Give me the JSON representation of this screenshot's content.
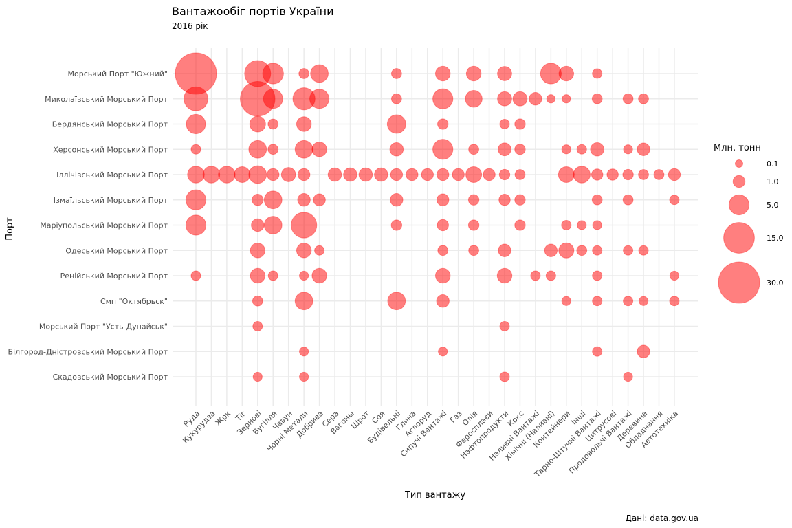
{
  "chart_data": {
    "type": "scatter",
    "title": "Вантажообіг портів України",
    "subtitle": "2016 рік",
    "xlabel": "Тип вантажу",
    "ylabel": "Порт",
    "caption": "Дані: data.gov.ua",
    "categories_x": [
      "Руда",
      "Кукурудза",
      "Жрк",
      "Тіг",
      "Зернові",
      "Вугілля",
      "Чавун",
      "Чорні Метали",
      "Добрива",
      "Сера",
      "Вагоны",
      "Шрот",
      "Соя",
      "Будівельні",
      "Глина",
      "Аглоруд",
      "Сипучі Вантажі",
      "Газ",
      "Олія",
      "Феросплави",
      "Нафтопродукти",
      "Кокс",
      "Наливні Вантажі",
      "Хімічні (Наливні)",
      "Контейнери",
      "Інші",
      "Тарно-Штучні Вантажі",
      "Цитрусові",
      "Продовольчі Вантажі",
      "Деревина",
      "Обладнання",
      "Автотехніка"
    ],
    "categories_y": [
      "Морський Порт \"Южний\"",
      "Миколаївський Морський Порт",
      "Бердянський Морський Порт",
      "Херсонський Морський Порт",
      "Іллічівський Морський Порт",
      "Ізмаїльський Морський Порт",
      "Маріупольський Морський Порт",
      "Одеський Морський Порт",
      "Ренійський Морський Порт",
      "Смп \"Октябрьск\"",
      "Морський Порт \"Усть-Дунайськ\"",
      "Білгород-Дністровський Морський Порт",
      "Скадовський Морський Порт"
    ],
    "grid": true,
    "legend": {
      "title": "Млн. тонн",
      "position": "right",
      "values": [
        0.1,
        1.0,
        5.0,
        15.0,
        30.0
      ],
      "labels": [
        "0.1",
        "1.0",
        "5.0",
        "15.0",
        "30.0"
      ]
    },
    "color": "#ff0000",
    "opacity": 0.5,
    "points": [
      {
        "x": "Руда",
        "y": "Морський Порт \"Южний\"",
        "value": 30.0
      },
      {
        "x": "Зернові",
        "y": "Морський Порт \"Южний\"",
        "value": 10.0
      },
      {
        "x": "Вугілля",
        "y": "Морський Порт \"Южний\"",
        "value": 5.5
      },
      {
        "x": "Чорні Метали",
        "y": "Морський Порт \"Южний\"",
        "value": 0.5
      },
      {
        "x": "Добрива",
        "y": "Морський Порт \"Южний\"",
        "value": 3.5
      },
      {
        "x": "Будівельні",
        "y": "Морський Порт \"Южний\"",
        "value": 0.5
      },
      {
        "x": "Сипучі Вантажі",
        "y": "Морський Порт \"Южний\"",
        "value": 2.0
      },
      {
        "x": "Олія",
        "y": "Морський Порт \"Южний\"",
        "value": 2.0
      },
      {
        "x": "Нафтопродукти",
        "y": "Морський Порт \"Южний\"",
        "value": 1.8
      },
      {
        "x": "Хімічні (Наливні)",
        "y": "Морський Порт \"Южний\"",
        "value": 5.5
      },
      {
        "x": "Контейнери",
        "y": "Морський Порт \"Южний\"",
        "value": 2.0
      },
      {
        "x": "Тарно-Штучні Вантажі",
        "y": "Морський Порт \"Южний\"",
        "value": 0.4
      },
      {
        "x": "Руда",
        "y": "Миколаївський Морський Порт",
        "value": 8.0
      },
      {
        "x": "Зернові",
        "y": "Миколаївський Морський Порт",
        "value": 20.0
      },
      {
        "x": "Вугілля",
        "y": "Миколаївський Морський Порт",
        "value": 4.5
      },
      {
        "x": "Чорні Метали",
        "y": "Миколаївський Морський Порт",
        "value": 6.5
      },
      {
        "x": "Добрива",
        "y": "Миколаївський Морський Порт",
        "value": 4.5
      },
      {
        "x": "Будівельні",
        "y": "Миколаївський Морський Порт",
        "value": 0.5
      },
      {
        "x": "Сипучі Вантажі",
        "y": "Миколаївський Морський Порт",
        "value": 5.0
      },
      {
        "x": "Олія",
        "y": "Миколаївський Морський Порт",
        "value": 3.0
      },
      {
        "x": "Нафтопродукти",
        "y": "Миколаївський Морський Порт",
        "value": 1.8
      },
      {
        "x": "Кокс",
        "y": "Миколаївський Морський Порт",
        "value": 1.8
      },
      {
        "x": "Наливні Вантажі",
        "y": "Миколаївський Морський Порт",
        "value": 1.2
      },
      {
        "x": "Хімічні (Наливні)",
        "y": "Миколаївський Морський Порт",
        "value": 0.2
      },
      {
        "x": "Контейнери",
        "y": "Миколаївський Морський Порт",
        "value": 0.2
      },
      {
        "x": "Тарно-Штучні Вантажі",
        "y": "Миколаївський Морський Порт",
        "value": 0.5
      },
      {
        "x": "Продовольчі Вантажі",
        "y": "Миколаївський Морський Порт",
        "value": 0.5
      },
      {
        "x": "Деревина",
        "y": "Миколаївський Морський Порт",
        "value": 0.5
      },
      {
        "x": "Руда",
        "y": "Бердянський Морський Порт",
        "value": 4.5
      },
      {
        "x": "Зернові",
        "y": "Бердянський Морський Порт",
        "value": 2.5
      },
      {
        "x": "Вугілля",
        "y": "Бердянський Морський Порт",
        "value": 0.5
      },
      {
        "x": "Чорні Метали",
        "y": "Бердянський Морський Порт",
        "value": 2.0
      },
      {
        "x": "Будівельні",
        "y": "Бердянський Морський Порт",
        "value": 4.0
      },
      {
        "x": "Сипучі Вантажі",
        "y": "Бердянський Морський Порт",
        "value": 0.6
      },
      {
        "x": "Нафтопродукти",
        "y": "Бердянський Морський Порт",
        "value": 0.4
      },
      {
        "x": "Кокс",
        "y": "Бердянський Морський Порт",
        "value": 0.6
      },
      {
        "x": "Руда",
        "y": "Херсонський Морський Порт",
        "value": 0.4
      },
      {
        "x": "Зернові",
        "y": "Херсонський Морський Порт",
        "value": 3.5
      },
      {
        "x": "Вугілля",
        "y": "Херсонський Морський Порт",
        "value": 0.5
      },
      {
        "x": "Чорні Метали",
        "y": "Херсонський Морський Порт",
        "value": 3.5
      },
      {
        "x": "Добрива",
        "y": "Херсонський Морський Порт",
        "value": 2.0
      },
      {
        "x": "Будівельні",
        "y": "Херсонський Морський Порт",
        "value": 1.5
      },
      {
        "x": "Сипучі Вантажі",
        "y": "Херсонський Морський Порт",
        "value": 5.0
      },
      {
        "x": "Олія",
        "y": "Херсонський Морський Порт",
        "value": 0.5
      },
      {
        "x": "Нафтопродукти",
        "y": "Херсонський Морський Порт",
        "value": 1.3
      },
      {
        "x": "Кокс",
        "y": "Херсонський Морський Порт",
        "value": 0.6
      },
      {
        "x": "Контейнери",
        "y": "Херсонський Морський Порт",
        "value": 0.3
      },
      {
        "x": "Інші",
        "y": "Херсонський Морський Порт",
        "value": 0.4
      },
      {
        "x": "Тарно-Штучні Вантажі",
        "y": "Херсонський Морський Порт",
        "value": 1.5
      },
      {
        "x": "Продовольчі Вантажі",
        "y": "Херсонський Морський Порт",
        "value": 0.3
      },
      {
        "x": "Деревина",
        "y": "Херсонський Морський Порт",
        "value": 1.2
      },
      {
        "x": "Руда",
        "y": "Іллічівський Морський Порт",
        "value": 3.0
      },
      {
        "x": "Кукурудза",
        "y": "Іллічівський Морський Порт",
        "value": 3.0
      },
      {
        "x": "Жрк",
        "y": "Іллічівський Морський Порт",
        "value": 3.0
      },
      {
        "x": "Тіг",
        "y": "Іллічівський Морський Порт",
        "value": 2.5
      },
      {
        "x": "Зернові",
        "y": "Іллічівський Морський Порт",
        "value": 3.5
      },
      {
        "x": "Вугілля",
        "y": "Іллічівський Морський Порт",
        "value": 1.0
      },
      {
        "x": "Чавун",
        "y": "Іллічівський Морський Порт",
        "value": 1.8
      },
      {
        "x": "Чорні Метали",
        "y": "Іллічівський Морський Порт",
        "value": 1.0
      },
      {
        "x": "Сера",
        "y": "Іллічівський Морський Порт",
        "value": 1.5
      },
      {
        "x": "Вагоны",
        "y": "Іллічівський Морський Порт",
        "value": 1.5
      },
      {
        "x": "Шрот",
        "y": "Іллічівський Морський Порт",
        "value": 1.5
      },
      {
        "x": "Соя",
        "y": "Іллічівський Морський Порт",
        "value": 1.5
      },
      {
        "x": "Будівельні",
        "y": "Іллічівський Морський Порт",
        "value": 1.0
      },
      {
        "x": "Глина",
        "y": "Іллічівський Морський Порт",
        "value": 1.0
      },
      {
        "x": "Аглоруд",
        "y": "Іллічівський Морський Порт",
        "value": 1.0
      },
      {
        "x": "Сипучі Вантажі",
        "y": "Іллічівський Морський Порт",
        "value": 1.0
      },
      {
        "x": "Газ",
        "y": "Іллічівський Морський Порт",
        "value": 1.0
      },
      {
        "x": "Олія",
        "y": "Іллічівський Морський Порт",
        "value": 2.5
      },
      {
        "x": "Феросплави",
        "y": "Іллічівський Морський Порт",
        "value": 1.0
      },
      {
        "x": "Нафтопродукти",
        "y": "Іллічівський Морський Порт",
        "value": 0.6
      },
      {
        "x": "Кокс",
        "y": "Іллічівський Морський Порт",
        "value": 0.5
      },
      {
        "x": "Контейнери",
        "y": "Іллічівський Морський Порт",
        "value": 2.5
      },
      {
        "x": "Інші",
        "y": "Іллічівський Морський Порт",
        "value": 3.0
      },
      {
        "x": "Тарно-Штучні Вантажі",
        "y": "Іллічівський Морський Порт",
        "value": 0.8
      },
      {
        "x": "Цитрусові",
        "y": "Іллічівський Морський Порт",
        "value": 0.8
      },
      {
        "x": "Продовольчі Вантажі",
        "y": "Іллічівський Морський Порт",
        "value": 0.6
      },
      {
        "x": "Деревина",
        "y": "Іллічівський Морський Порт",
        "value": 0.5
      },
      {
        "x": "Обладнання",
        "y": "Іллічівський Морський Порт",
        "value": 0.5
      },
      {
        "x": "Автотехніка",
        "y": "Іллічівський Морський Порт",
        "value": 1.0
      },
      {
        "x": "Руда",
        "y": "Ізмаїльський Морський Порт",
        "value": 5.0
      },
      {
        "x": "Зернові",
        "y": "Ізмаїльський Морський Порт",
        "value": 0.8
      },
      {
        "x": "Вугілля",
        "y": "Ізмаїльський Морський Порт",
        "value": 3.5
      },
      {
        "x": "Чорні Метали",
        "y": "Ізмаїльський Морський Порт",
        "value": 1.2
      },
      {
        "x": "Добрива",
        "y": "Ізмаїльський Морський Порт",
        "value": 1.0
      },
      {
        "x": "Будівельні",
        "y": "Ізмаїльський Морський Порт",
        "value": 1.2
      },
      {
        "x": "Сипучі Вантажі",
        "y": "Ізмаїльський Морський Порт",
        "value": 1.0
      },
      {
        "x": "Олія",
        "y": "Ізмаїльський Морський Порт",
        "value": 0.6
      },
      {
        "x": "Нафтопродукти",
        "y": "Ізмаїльський Морський Порт",
        "value": 0.8
      },
      {
        "x": "Кокс",
        "y": "Ізмаїльський Морський Порт",
        "value": 0.6
      },
      {
        "x": "Тарно-Штучні Вантажі",
        "y": "Ізмаїльський Морський Порт",
        "value": 0.5
      },
      {
        "x": "Продовольчі Вантажі",
        "y": "Ізмаїльський Морський Порт",
        "value": 0.5
      },
      {
        "x": "Автотехніка",
        "y": "Ізмаїльський Морський Порт",
        "value": 0.4
      },
      {
        "x": "Руда",
        "y": "Маріупольський Морський Порт",
        "value": 5.0
      },
      {
        "x": "Зернові",
        "y": "Маріупольський Морський Порт",
        "value": 1.2
      },
      {
        "x": "Вугілля",
        "y": "Маріупольський Морський Порт",
        "value": 3.5
      },
      {
        "x": "Чорні Метали",
        "y": "Маріупольський Морський Порт",
        "value": 9.5
      },
      {
        "x": "Будівельні",
        "y": "Маріупольський Морський Порт",
        "value": 0.6
      },
      {
        "x": "Сипучі Вантажі",
        "y": "Маріупольський Морський Порт",
        "value": 0.8
      },
      {
        "x": "Олія",
        "y": "Маріупольський Морський Порт",
        "value": 0.6
      },
      {
        "x": "Кокс",
        "y": "Маріупольський Морський Порт",
        "value": 0.6
      },
      {
        "x": "Контейнери",
        "y": "Маріупольський Морський Порт",
        "value": 0.4
      },
      {
        "x": "Інші",
        "y": "Маріупольський Морський Порт",
        "value": 0.3
      },
      {
        "x": "Тарно-Штучні Вантажі",
        "y": "Маріупольський Морський Порт",
        "value": 0.3
      },
      {
        "x": "Зернові",
        "y": "Одеський Морський Порт",
        "value": 2.0
      },
      {
        "x": "Чорні Метали",
        "y": "Одеський Морський Порт",
        "value": 2.0
      },
      {
        "x": "Добрива",
        "y": "Одеський Морський Порт",
        "value": 0.4
      },
      {
        "x": "Сипучі Вантажі",
        "y": "Одеський Морський Порт",
        "value": 0.5
      },
      {
        "x": "Олія",
        "y": "Одеський Морський Порт",
        "value": 0.5
      },
      {
        "x": "Нафтопродукти",
        "y": "Одеський Морський Порт",
        "value": 1.2
      },
      {
        "x": "Хімічні (Наливні)",
        "y": "Одеський Морський Порт",
        "value": 1.2
      },
      {
        "x": "Контейнери",
        "y": "Одеський Морський Порт",
        "value": 2.2
      },
      {
        "x": "Інші",
        "y": "Одеський Морський Порт",
        "value": 0.5
      },
      {
        "x": "Тарно-Штучні Вантажі",
        "y": "Одеський Морський Порт",
        "value": 0.4
      },
      {
        "x": "Продовольчі Вантажі",
        "y": "Одеський Морський Порт",
        "value": 0.4
      },
      {
        "x": "Деревина",
        "y": "Одеський Морський Порт",
        "value": 0.4
      },
      {
        "x": "Руда",
        "y": "Ренійський Морський Порт",
        "value": 0.4
      },
      {
        "x": "Зернові",
        "y": "Ренійський Морський Порт",
        "value": 2.0
      },
      {
        "x": "Вугілля",
        "y": "Ренійський Морський Порт",
        "value": 0.4
      },
      {
        "x": "Чорні Метали",
        "y": "Ренійський Морський Порт",
        "value": 0.3
      },
      {
        "x": "Добрива",
        "y": "Ренійський Морський Порт",
        "value": 2.0
      },
      {
        "x": "Сипучі Вантажі",
        "y": "Ренійський Морський Порт",
        "value": 2.0
      },
      {
        "x": "Нафтопродукти",
        "y": "Ренійський Морський Порт",
        "value": 2.0
      },
      {
        "x": "Наливні Вантажі",
        "y": "Ренійський Морський Порт",
        "value": 0.4
      },
      {
        "x": "Хімічні (Наливні)",
        "y": "Ренійський Морський Порт",
        "value": 0.4
      },
      {
        "x": "Тарно-Штучні Вантажі",
        "y": "Ренійський Морський Порт",
        "value": 0.4
      },
      {
        "x": "Автотехніка",
        "y": "Ренійський Морський Порт",
        "value": 0.3
      },
      {
        "x": "Зернові",
        "y": "Смп \"Октябрьск\"",
        "value": 0.5
      },
      {
        "x": "Чорні Метали",
        "y": "Смп \"Октябрьск\"",
        "value": 3.5
      },
      {
        "x": "Будівельні",
        "y": "Смп \"Октябрьск\"",
        "value": 3.5
      },
      {
        "x": "Сипучі Вантажі",
        "y": "Смп \"Октябрьск\"",
        "value": 1.2
      },
      {
        "x": "Контейнери",
        "y": "Смп \"Октябрьск\"",
        "value": 0.3
      },
      {
        "x": "Тарно-Штучні Вантажі",
        "y": "Смп \"Октябрьск\"",
        "value": 0.4
      },
      {
        "x": "Продовольчі Вантажі",
        "y": "Смп \"Октябрьск\"",
        "value": 0.4
      },
      {
        "x": "Деревина",
        "y": "Смп \"Октябрьск\"",
        "value": 0.3
      },
      {
        "x": "Автотехніка",
        "y": "Смп \"Октябрьск\"",
        "value": 0.4
      },
      {
        "x": "Зернові",
        "y": "Морський Порт \"Усть-Дунайськ\"",
        "value": 0.4
      },
      {
        "x": "Нафтопродукти",
        "y": "Морський Порт \"Усть-Дунайськ\"",
        "value": 0.4
      },
      {
        "x": "Чорні Метали",
        "y": "Білгород-Дністровський Морський Порт",
        "value": 0.3
      },
      {
        "x": "Сипучі Вантажі",
        "y": "Білгород-Дністровський Морський Порт",
        "value": 0.3
      },
      {
        "x": "Тарно-Штучні Вантажі",
        "y": "Білгород-Дністровський Морський Порт",
        "value": 0.4
      },
      {
        "x": "Деревина",
        "y": "Білгород-Дністровський Морський Порт",
        "value": 1.2
      },
      {
        "x": "Зернові",
        "y": "Скадовський Морський Порт",
        "value": 0.3
      },
      {
        "x": "Чорні Метали",
        "y": "Скадовський Морський Порт",
        "value": 0.3
      },
      {
        "x": "Нафтопродукти",
        "y": "Скадовський Морський Порт",
        "value": 0.4
      },
      {
        "x": "Продовольчі Вантажі",
        "y": "Скадовський Морський Порт",
        "value": 0.3
      }
    ]
  }
}
